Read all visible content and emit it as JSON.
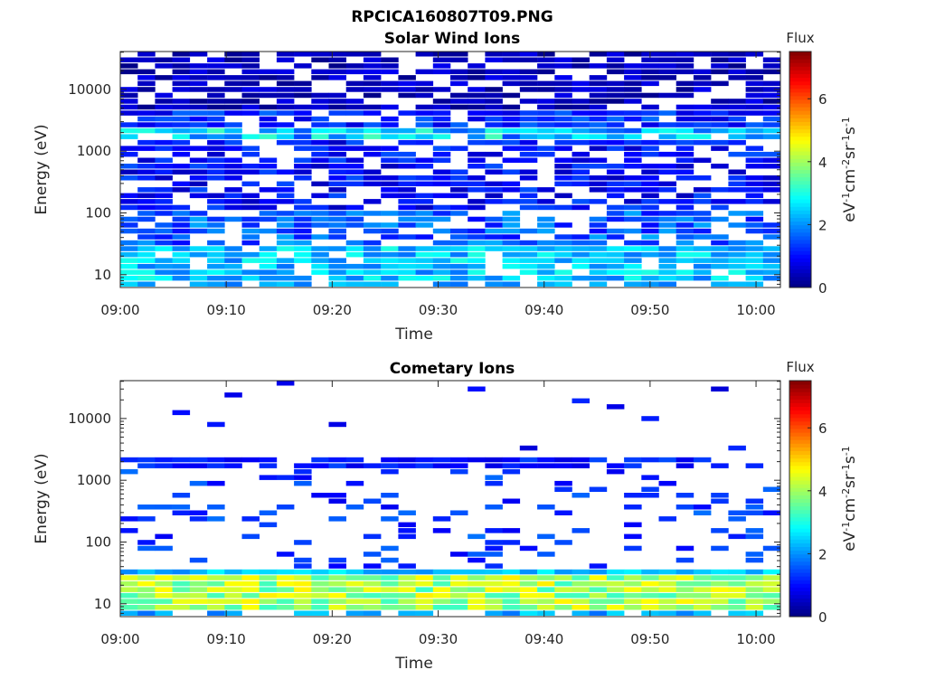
{
  "figure_title": "RPCICA160807T09.PNG",
  "chart_data": [
    {
      "type": "heatmap",
      "title": "Solar Wind Ions",
      "xlabel": "Time",
      "ylabel": "Energy (eV)",
      "xticks": [
        "09:00",
        "09:10",
        "09:20",
        "09:30",
        "09:40",
        "09:50",
        "10:00"
      ],
      "xtick_minutes": [
        0,
        10,
        20,
        30,
        40,
        50,
        60
      ],
      "xlim_minutes": [
        0,
        62.3
      ],
      "yticks": [
        "10",
        "100",
        "1000",
        "10000"
      ],
      "ytick_values": [
        10,
        100,
        1000,
        10000
      ],
      "ylim": [
        6.2,
        41000
      ],
      "yscale": "log",
      "time_bins": 38,
      "energy_bins": 40,
      "colorbar": {
        "label_title": "Flux",
        "label": "eV-1cm-2sr-1s-1",
        "ticks": [
          "0",
          "2",
          "4",
          "6"
        ],
        "tick_values": [
          0,
          2,
          4,
          6
        ],
        "range": [
          0,
          7.5
        ],
        "colormap": "jet"
      },
      "seed": 17,
      "profile_log10_flux": [
        {
          "emin": 6.2,
          "emax": 8.5,
          "mean": 2.2,
          "spread": 0.3,
          "fill": 0.55
        },
        {
          "emin": 8.5,
          "emax": 28,
          "mean": 2.4,
          "spread": 0.4,
          "fill": 0.9
        },
        {
          "emin": 28,
          "emax": 100,
          "mean": 1.6,
          "spread": 0.4,
          "fill": 0.7
        },
        {
          "emin": 100,
          "emax": 1500,
          "mean": 1.0,
          "spread": 0.35,
          "fill": 0.7
        },
        {
          "emin": 1500,
          "emax": 2300,
          "mean": 2.4,
          "spread": 0.6,
          "fill": 0.95
        },
        {
          "emin": 2300,
          "emax": 5000,
          "mean": 1.2,
          "spread": 0.35,
          "fill": 0.85
        },
        {
          "emin": 5000,
          "emax": 41000,
          "mean": 0.45,
          "spread": 0.25,
          "fill": 0.75
        }
      ]
    },
    {
      "type": "heatmap",
      "title": "Cometary Ions",
      "xlabel": "Time",
      "ylabel": "Energy (eV)",
      "xticks": [
        "09:00",
        "09:10",
        "09:20",
        "09:30",
        "09:40",
        "09:50",
        "10:00"
      ],
      "xtick_minutes": [
        0,
        10,
        20,
        30,
        40,
        50,
        60
      ],
      "xlim_minutes": [
        0,
        62.3
      ],
      "yticks": [
        "10",
        "100",
        "1000",
        "10000"
      ],
      "ytick_values": [
        10,
        100,
        1000,
        10000
      ],
      "ylim": [
        6.2,
        41000
      ],
      "yscale": "log",
      "time_bins": 38,
      "energy_bins": 40,
      "colorbar": {
        "label_title": "Flux",
        "label": "eV-1cm-2sr-1s-1",
        "ticks": [
          "0",
          "2",
          "4",
          "6"
        ],
        "tick_values": [
          0,
          2,
          4,
          6
        ],
        "range": [
          0,
          7.5
        ],
        "colormap": "jet"
      },
      "seed": 91,
      "profile_log10_flux": [
        {
          "emin": 6.2,
          "emax": 8.5,
          "mean": 2.2,
          "spread": 0.3,
          "fill": 0.55
        },
        {
          "emin": 8.5,
          "emax": 28,
          "mean": 4.0,
          "spread": 0.5,
          "fill": 1.0
        },
        {
          "emin": 28,
          "emax": 36,
          "mean": 2.4,
          "spread": 0.3,
          "fill": 1.0
        },
        {
          "emin": 36,
          "emax": 1500,
          "mean": 1.3,
          "spread": 0.3,
          "fill": 0.18
        },
        {
          "emin": 1500,
          "emax": 2300,
          "mean": 1.1,
          "spread": 0.25,
          "fill": 0.75
        },
        {
          "emin": 2300,
          "emax": 41000,
          "mean": 0.9,
          "spread": 0.2,
          "fill": 0.04
        }
      ]
    }
  ]
}
